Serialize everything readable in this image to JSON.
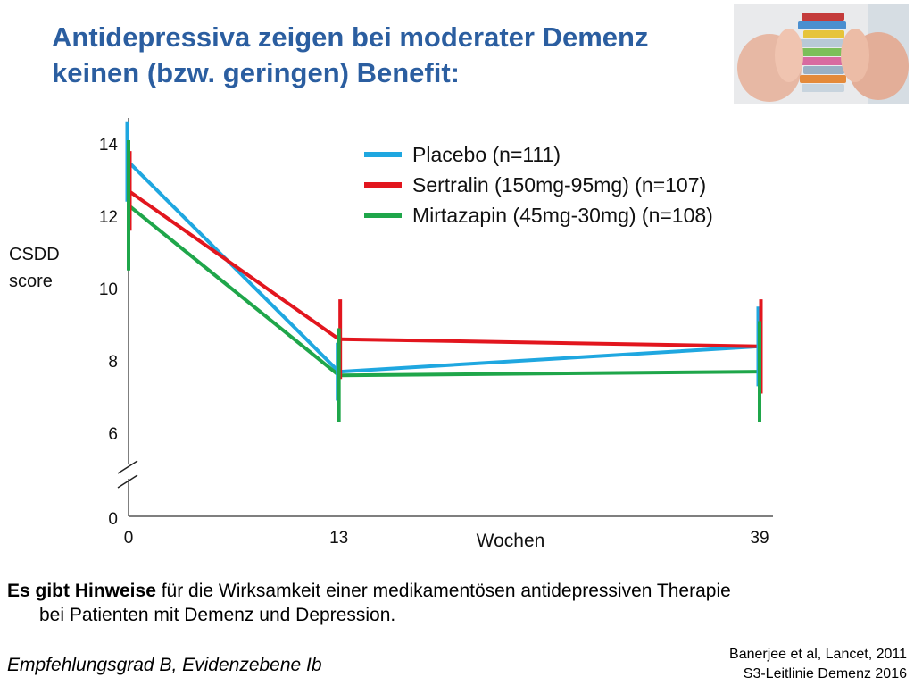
{
  "title": {
    "line1": "Antidepressiva zeigen bei moderater Demenz",
    "line2": "keinen (bzw. geringen) Benefit:"
  },
  "image": {
    "icon": "pills-in-hands-photo"
  },
  "chart_data": {
    "type": "line",
    "ylabel": [
      "CSDD",
      "score"
    ],
    "xlabel": "Wochen",
    "x": [
      0,
      13,
      39
    ],
    "x_ticks": [
      "0",
      "13",
      "39"
    ],
    "y_ticks": [
      "14",
      "12",
      "10",
      "8",
      "6",
      "0"
    ],
    "ylim": [
      5,
      15
    ],
    "axis_break": true,
    "series": [
      {
        "name": "Placebo (n=111)",
        "color": "#1fa7e0",
        "values": [
          13.5,
          7.7,
          8.4
        ],
        "error": [
          1.1,
          0.8,
          1.1
        ]
      },
      {
        "name": "Sertralin (150mg-95mg) (n=107)",
        "color": "#e2161e",
        "values": [
          12.7,
          8.6,
          8.4
        ],
        "error": [
          1.1,
          1.1,
          1.3
        ]
      },
      {
        "name": "Mirtazapin (45mg-30mg) (n=108)",
        "color": "#1fa64a",
        "values": [
          12.3,
          7.6,
          7.7
        ],
        "error": [
          1.8,
          1.3,
          1.4
        ]
      }
    ],
    "legend": "top-right",
    "grid": false
  },
  "body": {
    "bold": "Es gibt Hinweise",
    "rest": " für die Wirksamkeit einer medikamentösen antidepressiven Therapie",
    "line2": "bei Patienten mit Demenz und Depression."
  },
  "recommendation": "Empfehlungsgrad B, Evidenzebene Ib",
  "references": [
    "Banerjee et al, Lancet, 2011",
    "S3-Leitlinie Demenz 2016"
  ]
}
